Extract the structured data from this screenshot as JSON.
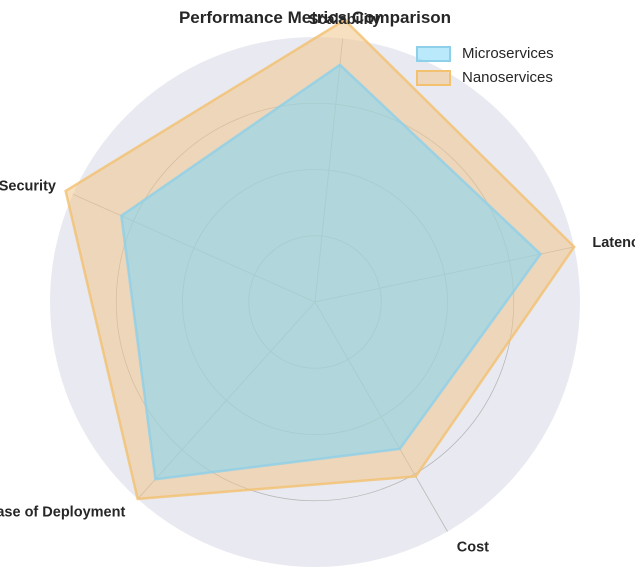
{
  "chart_data": {
    "type": "radar",
    "title": "Performance Metrics Comparison",
    "axes": [
      "Latency",
      "Scalability",
      "Security",
      "Ease of Deployment",
      "Cost"
    ],
    "rlim": [
      0,
      10
    ],
    "ring_levels": [
      2.5,
      5,
      7.5,
      10
    ],
    "grid": true,
    "legend_position": "top-right",
    "background_color": "#e9e9f1",
    "series": [
      {
        "name": "Microservices",
        "values": [
          8.7,
          9.0,
          8.0,
          9.0,
          6.4
        ],
        "color": "#7fd7f5",
        "edge_color": "#8ed0e8"
      },
      {
        "name": "Nanoservices",
        "values": [
          10.0,
          10.7,
          10.3,
          10.0,
          7.6
        ],
        "color": "#f1c78c",
        "edge_color": "#f3c16f"
      }
    ]
  }
}
